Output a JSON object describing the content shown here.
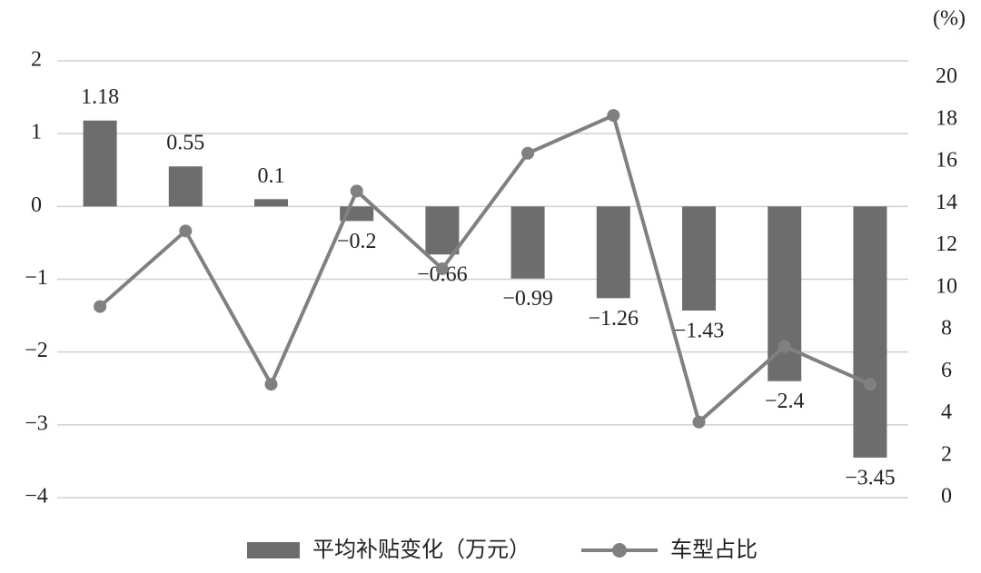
{
  "chart_data": {
    "type": "bar",
    "categories": [
      null,
      null,
      null,
      null,
      null,
      null,
      null,
      null,
      null,
      null
    ],
    "series": [
      {
        "name": "平均补贴变化（万元）",
        "color": "#6d6d6d",
        "type": "bar",
        "values": [
          1.18,
          0.55,
          0.1,
          -0.2,
          -0.66,
          -0.99,
          -1.26,
          -1.43,
          -2.4,
          -3.45
        ],
        "value_labels": [
          "1.18",
          "0.55",
          "0.1",
          "−0.2",
          "−0.66",
          "−0.99",
          "−1.26",
          "−1.43",
          "−2.4",
          "−3.45"
        ]
      },
      {
        "name": "车型占比",
        "color": "#808080",
        "type": "line",
        "axis": "y2",
        "values": [
          9.1,
          12.7,
          5.4,
          14.6,
          10.9,
          16.4,
          18.2,
          3.6,
          7.2,
          5.4
        ]
      }
    ],
    "ylim": [
      -4,
      2
    ],
    "yticks": [
      {
        "value": -4,
        "label": "−4"
      },
      {
        "value": -3,
        "label": "−3"
      },
      {
        "value": -2,
        "label": "−2"
      },
      {
        "value": -1,
        "label": "−1"
      },
      0,
      1,
      2
    ],
    "y2lim": [
      0,
      20.8
    ],
    "y2ticks": [
      0,
      2,
      4,
      6,
      8,
      10,
      12,
      14,
      16,
      18,
      20
    ],
    "y2label": "(%)",
    "grid": true
  }
}
